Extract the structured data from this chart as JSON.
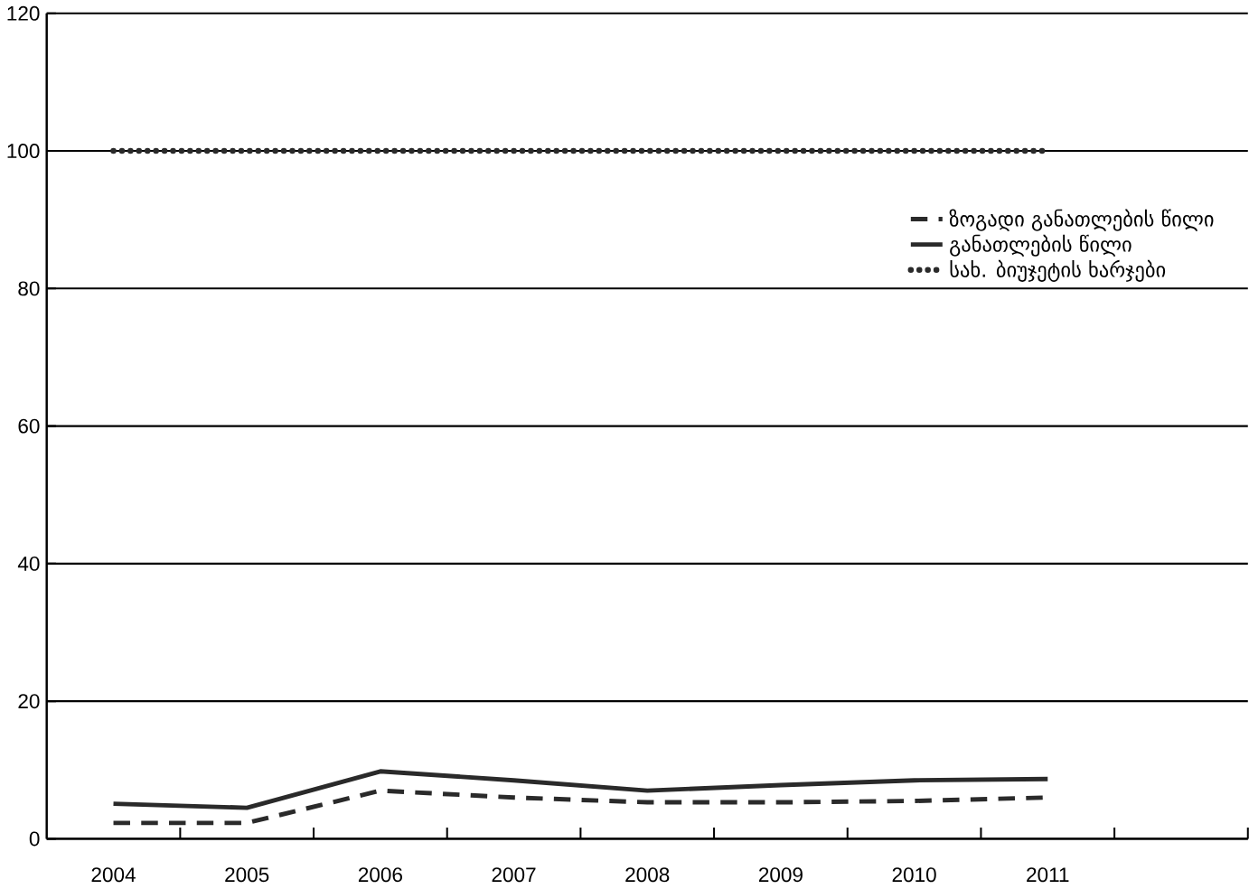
{
  "chart_data": {
    "type": "line",
    "categories": [
      "2004",
      "2005",
      "2006",
      "2007",
      "2008",
      "2009",
      "2010",
      "2011"
    ],
    "series": [
      {
        "name": "ზოგადი განათლების წილი",
        "color": "#2a2a2a",
        "line_style": "dashed",
        "values": [
          2.3,
          2.3,
          7,
          6,
          5.3,
          5.3,
          5.5,
          6
        ]
      },
      {
        "name": "განათლების წილი",
        "color": "#2a2a2a",
        "line_style": "solid",
        "values": [
          5.1,
          4.5,
          9.8,
          8.5,
          7,
          7.8,
          8.5,
          8.7
        ]
      },
      {
        "name": "სახ. ბიუჯეტის ხარჯები",
        "color": "#2a2a2a",
        "line_style": "dotted",
        "values": [
          100,
          100,
          100,
          100,
          100,
          100,
          100,
          100
        ]
      }
    ],
    "ylim": [
      0,
      120
    ],
    "yticks": [
      0,
      20,
      40,
      60,
      80,
      100,
      120
    ],
    "grid": "y",
    "legend": "right"
  }
}
